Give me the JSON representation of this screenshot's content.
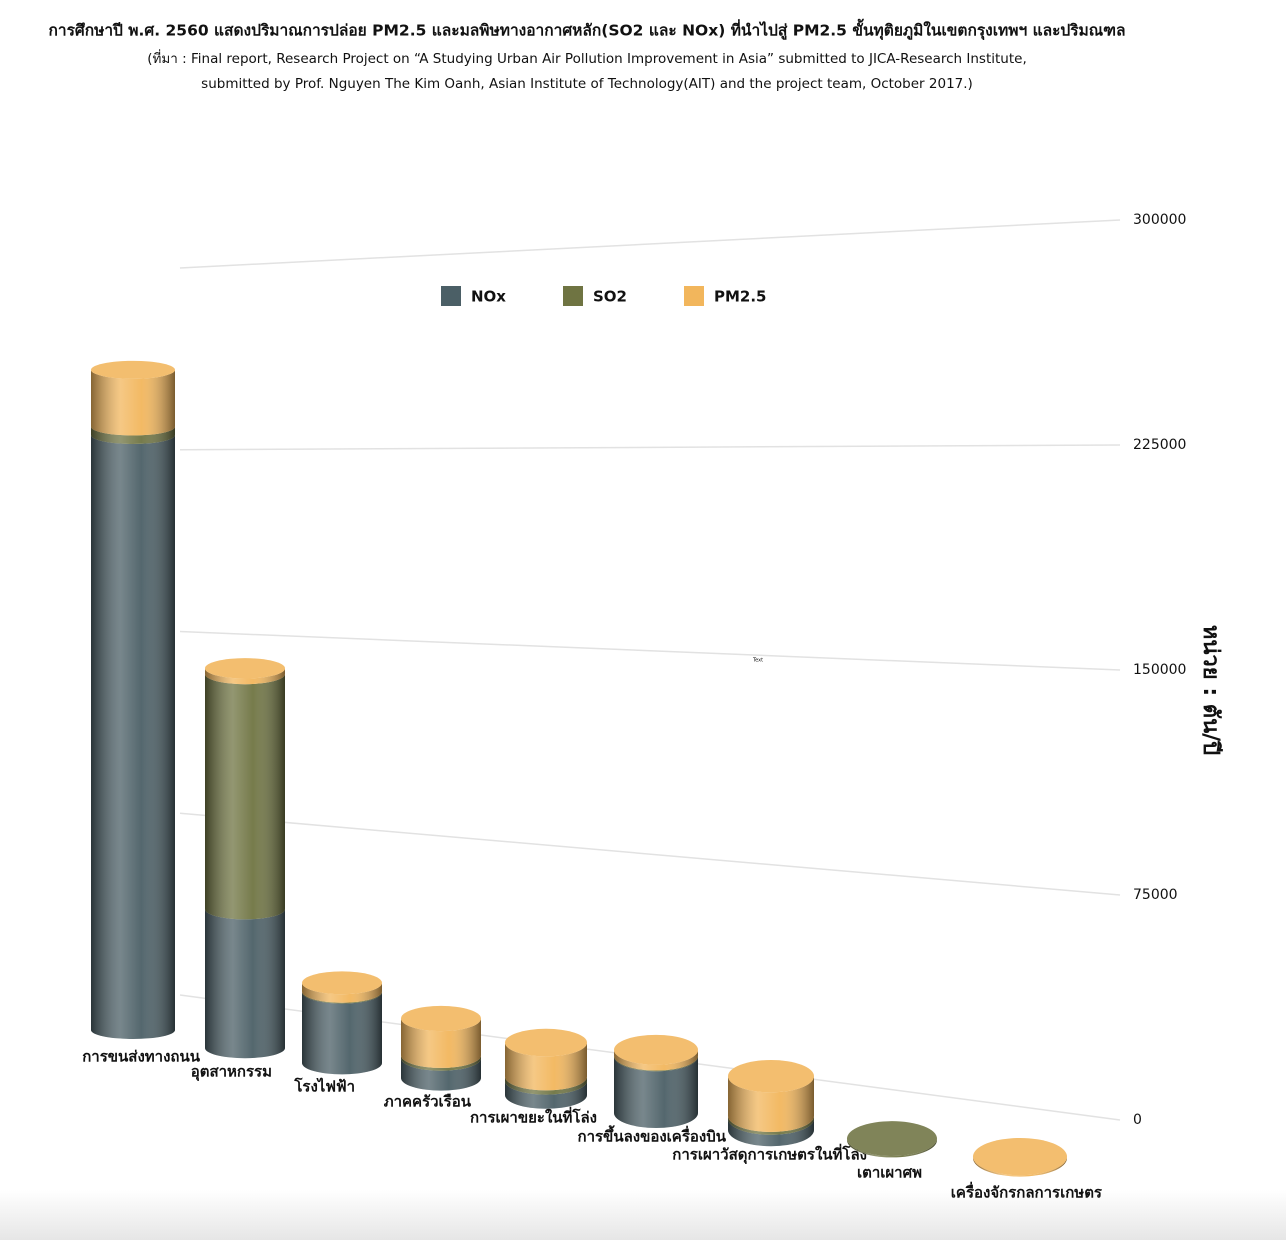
{
  "chart_data": {
    "type": "stacked-cylinder",
    "title": "การศึกษาปี พ.ศ. 2560 แสดงปริมาณการปล่อย PM2.5 และมลพิษทางอากาศหลัก(SO2 และ NOx) ที่นำไปสู่ PM2.5 ขั้นทุติยภูมิในเขตกรุงเทพฯ และปริมณฑล",
    "subtitle": [
      "(ที่มา : Final report, Research Project on “A Studying Urban Air Pollution Improvement in Asia” submitted to JICA-Research Institute,",
      "submitted by Prof. Nguyen The Kim Oanh, Asian Institute of Technology(AIT) and the project team, October 2017.)"
    ],
    "y_label": "หน่วย : ตัน/ปี",
    "annotation": "Text",
    "categories": [
      "การขนส่งทางถนน",
      "อุตสาหกรรม",
      "โรงไฟฟ้า",
      "ภาคครัวเรือน",
      "การเผาขยะในที่โล่ง",
      "การขึ้นลงของเครื่องบิน",
      "การเผาวัสดุการเกษตรในที่โล่ง",
      "เตาเผาศพ",
      "เครื่องจักรกลการเกษตร"
    ],
    "series": [
      {
        "name": "NOx",
        "color": "#4b5f66",
        "values": [
          210000,
          49000,
          25000,
          7000,
          5000,
          20000,
          4000,
          0,
          0
        ]
      },
      {
        "name": "SO2",
        "color": "#6f7442",
        "values": [
          3000,
          83000,
          300,
          1000,
          1500,
          300,
          1000,
          500,
          0
        ]
      },
      {
        "name": "PM2.5",
        "color": "#f2b65c",
        "values": [
          20000,
          2000,
          3000,
          13000,
          12000,
          2000,
          14000,
          0,
          500
        ]
      }
    ],
    "ylim": [
      0,
      300000
    ],
    "yticks": [
      0,
      75000,
      150000,
      225000,
      300000
    ],
    "grid": true
  }
}
